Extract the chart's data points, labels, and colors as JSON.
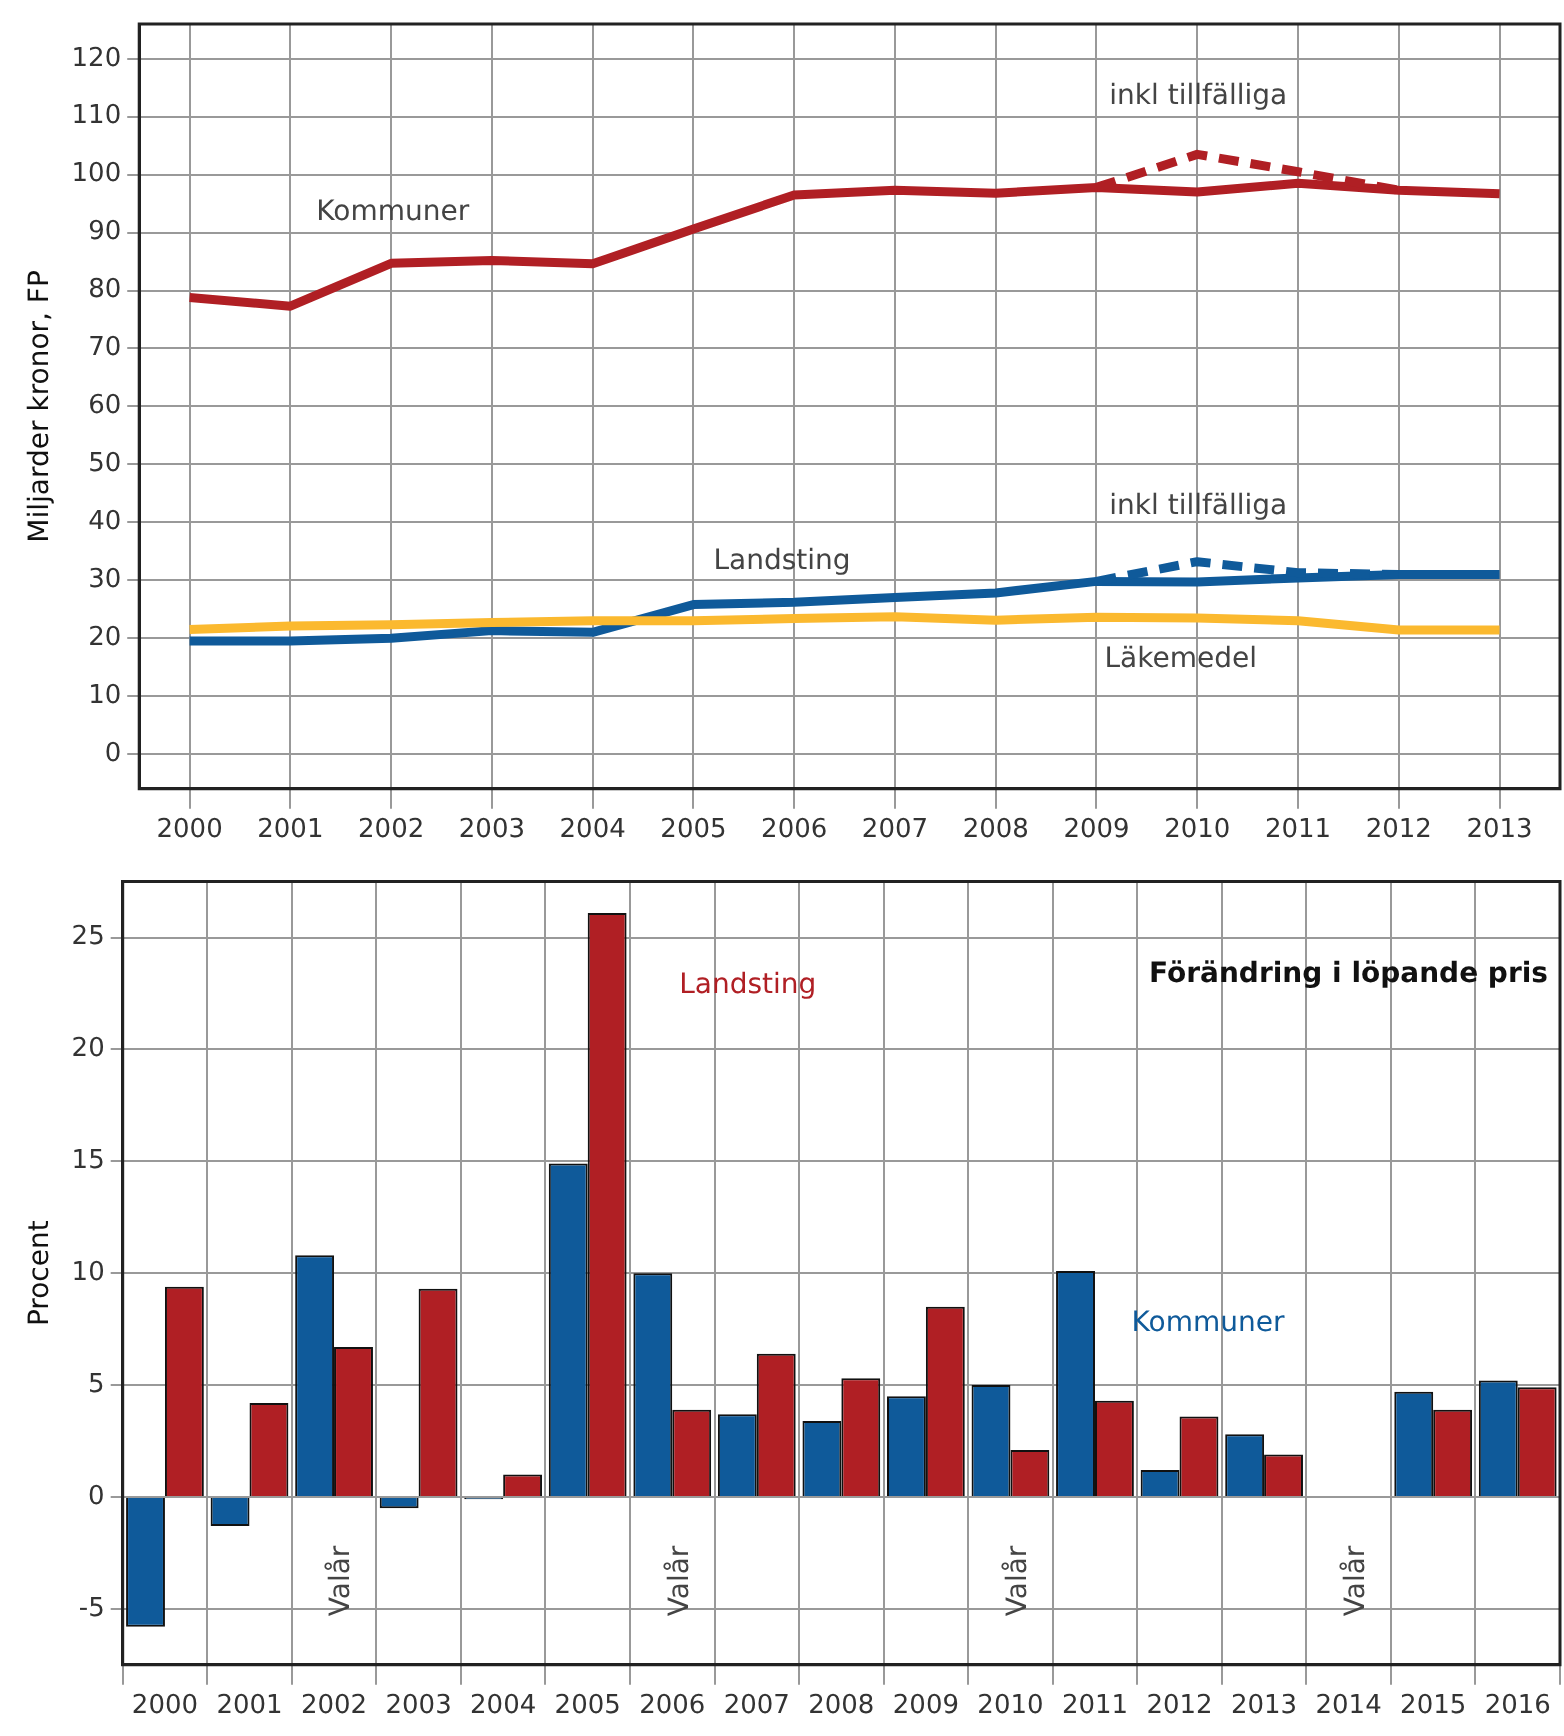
{
  "chart_data": [
    {
      "type": "line",
      "ylabel": "Miljarder kronor, FP",
      "x": [
        2000,
        2001,
        2002,
        2003,
        2004,
        2005,
        2006,
        2007,
        2008,
        2009,
        2010,
        2011,
        2012,
        2013
      ],
      "xlim": [
        1999.5,
        2013.6
      ],
      "xticks": [
        2000,
        2001,
        2002,
        2003,
        2004,
        2005,
        2006,
        2007,
        2008,
        2009,
        2010,
        2011,
        2012,
        2013
      ],
      "ylim": [
        -6,
        126
      ],
      "yticks": [
        0,
        10,
        20,
        30,
        40,
        50,
        60,
        70,
        80,
        90,
        100,
        110,
        120
      ],
      "grid": true,
      "legend": false,
      "marker": "none",
      "line_style": "solid",
      "series": [
        {
          "name": "Kommuner",
          "color": "#b01f24",
          "values": [
            78.8,
            77.3,
            84.7,
            85.2,
            84.6,
            90.6,
            96.5,
            97.3,
            96.8,
            97.8,
            97.0,
            98.5,
            97.3,
            96.7
          ]
        },
        {
          "name": "inkl tillfälliga",
          "color": "#b01f24",
          "line_style": "dashed",
          "x": [
            2009,
            2010,
            2011,
            2012
          ],
          "values": [
            97.8,
            103.5,
            100.5,
            97.3
          ]
        },
        {
          "name": "Landsting",
          "color": "#0f5a9a",
          "values": [
            19.5,
            19.5,
            20.0,
            21.3,
            21.0,
            25.8,
            26.2,
            27.0,
            27.8,
            29.8,
            29.7,
            30.4,
            31.0,
            31.0
          ]
        },
        {
          "name": "inkl tillfälliga",
          "color": "#0f5a9a",
          "line_style": "dashed",
          "x": [
            2009,
            2010,
            2011,
            2012
          ],
          "values": [
            29.8,
            33.2,
            31.3,
            31.0
          ]
        },
        {
          "name": "Läkemedel",
          "color": "#fbb92f",
          "values": [
            21.5,
            22.1,
            22.3,
            22.7,
            23.0,
            23.0,
            23.4,
            23.7,
            23.1,
            23.6,
            23.5,
            23.0,
            21.4,
            21.4
          ]
        }
      ]
    },
    {
      "type": "bar",
      "title": "Förändring i löpande pris",
      "ylabel": "Procent",
      "categories": [
        "2000",
        "2001",
        "2002",
        "2003",
        "2004",
        "2005",
        "2006",
        "2007",
        "2008",
        "2009",
        "2010",
        "2011",
        "2012",
        "2013",
        "2014",
        "2015",
        "2016"
      ],
      "ylim": [
        -7.5,
        27.5
      ],
      "yticks": [
        -5,
        0,
        5,
        10,
        15,
        20,
        25
      ],
      "grid": true,
      "legend": false,
      "series": [
        {
          "name": "Kommuner",
          "color": "#0f5a9a",
          "values": [
            -5.8,
            -1.3,
            10.8,
            -0.5,
            -0.1,
            14.9,
            10.0,
            3.7,
            3.4,
            4.5,
            5.0,
            10.1,
            1.2,
            2.8,
            0,
            4.7,
            5.2
          ]
        },
        {
          "name": "Landsting",
          "color": "#b01f24",
          "values": [
            9.4,
            4.2,
            6.7,
            9.3,
            1.0,
            26.1,
            3.9,
            6.4,
            5.3,
            8.5,
            2.1,
            4.3,
            3.6,
            1.9,
            0,
            3.9,
            4.9
          ]
        }
      ],
      "annotations": [
        "Valår",
        "Valår",
        "Valår",
        "Valår"
      ]
    }
  ]
}
